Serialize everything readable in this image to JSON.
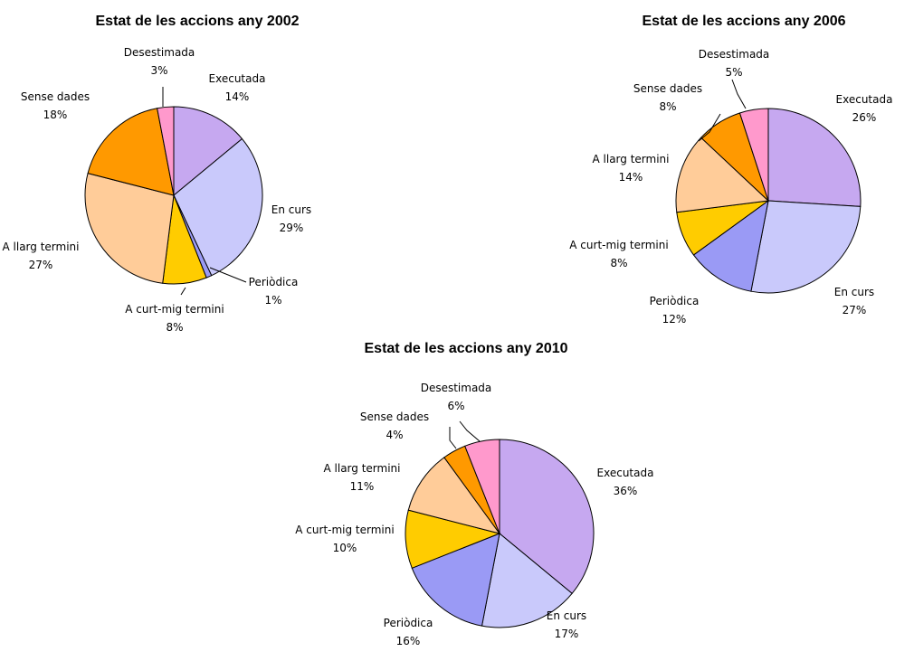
{
  "chart_data": [
    {
      "type": "pie",
      "title": "Estat de les accions any 2002",
      "slices": [
        {
          "label": "Executada",
          "value": 14,
          "value_label": "14%",
          "color": "#c6a8f0"
        },
        {
          "label": "En curs",
          "value": 29,
          "value_label": "29%",
          "color": "#c9c9fb"
        },
        {
          "label": "Periòdica",
          "value": 1,
          "value_label": "1%",
          "color": "#9a9af5"
        },
        {
          "label": "A curt-mig termini",
          "value": 8,
          "value_label": "8%",
          "color": "#ffcc00"
        },
        {
          "label": "A llarg termini",
          "value": 27,
          "value_label": "27%",
          "color": "#ffcc99"
        },
        {
          "label": "Sense dades",
          "value": 18,
          "value_label": "18%",
          "color": "#ff9900"
        },
        {
          "label": "Desestimada",
          "value": 3,
          "value_label": "3%",
          "color": "#ff99cc"
        }
      ]
    },
    {
      "type": "pie",
      "title": "Estat de les accions any 2006",
      "slices": [
        {
          "label": "Executada",
          "value": 26,
          "value_label": "26%",
          "color": "#c6a8f0"
        },
        {
          "label": "En curs",
          "value": 27,
          "value_label": "27%",
          "color": "#c9c9fb"
        },
        {
          "label": "Periòdica",
          "value": 12,
          "value_label": "12%",
          "color": "#9a9af5"
        },
        {
          "label": "A curt-mig termini",
          "value": 8,
          "value_label": "8%",
          "color": "#ffcc00"
        },
        {
          "label": "A llarg termini",
          "value": 14,
          "value_label": "14%",
          "color": "#ffcc99"
        },
        {
          "label": "Sense dades",
          "value": 8,
          "value_label": "8%",
          "color": "#ff9900"
        },
        {
          "label": "Desestimada",
          "value": 5,
          "value_label": "5%",
          "color": "#ff99cc"
        }
      ]
    },
    {
      "type": "pie",
      "title": "Estat de les accions any 2010",
      "slices": [
        {
          "label": "Executada",
          "value": 36,
          "value_label": "36%",
          "color": "#c6a8f0"
        },
        {
          "label": "En curs",
          "value": 17,
          "value_label": "17%",
          "color": "#c9c9fb"
        },
        {
          "label": "Periòdica",
          "value": 16,
          "value_label": "16%",
          "color": "#9a9af5"
        },
        {
          "label": "A curt-mig termini",
          "value": 10,
          "value_label": "10%",
          "color": "#ffcc00"
        },
        {
          "label": "A llarg termini",
          "value": 11,
          "value_label": "11%",
          "color": "#ffcc99"
        },
        {
          "label": "Sense dades",
          "value": 4,
          "value_label": "4%",
          "color": "#ff9900"
        },
        {
          "label": "Desestimada",
          "value": 6,
          "value_label": "6%",
          "color": "#ff99cc"
        }
      ]
    }
  ]
}
